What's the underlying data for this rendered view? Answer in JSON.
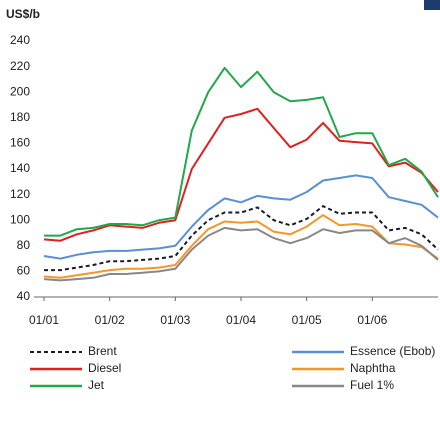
{
  "chart_data": {
    "type": "line",
    "y_label": "US$/b",
    "categories": [
      "01/01",
      null,
      null,
      null,
      "01/02",
      null,
      null,
      null,
      "01/03",
      null,
      null,
      null,
      "01/04",
      null,
      null,
      null,
      "01/05",
      null,
      null,
      null,
      "01/06",
      null,
      null,
      null,
      null
    ],
    "ylim": [
      40,
      240
    ],
    "yticks": [
      40,
      60,
      80,
      100,
      120,
      140,
      160,
      180,
      200,
      220,
      240
    ],
    "grid": false,
    "series": [
      {
        "name": "Brent",
        "color": "#1a1a2e",
        "dashed": true,
        "values": [
          61,
          61,
          63,
          65,
          68,
          68,
          69,
          70,
          72,
          88,
          100,
          106,
          106,
          110,
          100,
          96,
          101,
          111,
          105,
          106,
          106,
          92,
          94,
          89,
          77
        ]
      },
      {
        "name": "Essence (Ebob)",
        "color": "#5b8fd4",
        "values": [
          72,
          70,
          73,
          75,
          76,
          76,
          77,
          78,
          80,
          95,
          108,
          117,
          114,
          119,
          117,
          116,
          122,
          131,
          133,
          135,
          133,
          118,
          115,
          112,
          102
        ]
      },
      {
        "name": "Diesel",
        "color": "#e02020",
        "values": [
          85,
          84,
          89,
          92,
          96,
          95,
          94,
          98,
          100,
          140,
          160,
          180,
          183,
          187,
          172,
          157,
          163,
          176,
          162,
          161,
          160,
          142,
          145,
          137,
          122
        ]
      },
      {
        "name": "Naphtha",
        "color": "#f5962a",
        "values": [
          56,
          55,
          57,
          59,
          61,
          62,
          62,
          63,
          65,
          80,
          93,
          99,
          98,
          99,
          91,
          89,
          95,
          104,
          96,
          97,
          95,
          82,
          81,
          79,
          70
        ]
      },
      {
        "name": "Jet",
        "color": "#22a84a",
        "values": [
          88,
          88,
          93,
          94,
          97,
          97,
          96,
          100,
          102,
          170,
          200,
          219,
          204,
          216,
          200,
          193,
          194,
          196,
          165,
          168,
          168,
          143,
          148,
          138,
          118
        ]
      },
      {
        "name": "Fuel 1%",
        "color": "#888888",
        "values": [
          54,
          53,
          54,
          55,
          58,
          58,
          59,
          60,
          62,
          77,
          88,
          94,
          92,
          93,
          86,
          82,
          86,
          93,
          90,
          92,
          92,
          82,
          86,
          80,
          69
        ]
      }
    ]
  }
}
